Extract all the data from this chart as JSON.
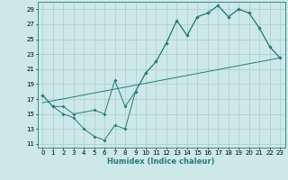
{
  "xlabel": "Humidex (Indice chaleur)",
  "background_color": "#cce8e8",
  "grid_color": "#aacccc",
  "line_color": "#2a7a7a",
  "xlim": [
    -0.5,
    23.5
  ],
  "ylim": [
    10.5,
    30.0
  ],
  "xticks": [
    0,
    1,
    2,
    3,
    4,
    5,
    6,
    7,
    8,
    9,
    10,
    11,
    12,
    13,
    14,
    15,
    16,
    17,
    18,
    19,
    20,
    21,
    22,
    23
  ],
  "yticks": [
    11,
    13,
    15,
    17,
    19,
    21,
    23,
    25,
    27,
    29
  ],
  "series1_x": [
    0,
    1,
    2,
    3,
    4,
    5,
    6,
    7,
    8,
    9,
    10,
    11,
    12,
    13,
    14,
    15,
    16,
    17,
    18,
    19,
    20,
    21,
    22,
    23
  ],
  "series1_y": [
    17.5,
    16,
    15,
    14.5,
    13,
    12,
    11.5,
    13.5,
    13,
    18,
    20.5,
    22,
    24.5,
    27.5,
    25.5,
    28,
    28.5,
    29.5,
    28,
    29,
    28.5,
    26.5,
    24,
    22.5
  ],
  "series2_x": [
    0,
    1,
    2,
    3,
    5,
    6,
    7,
    8,
    9,
    10,
    11,
    12,
    13,
    14,
    15,
    16,
    17,
    18,
    19,
    20,
    21,
    22,
    23
  ],
  "series2_y": [
    17.5,
    16,
    16,
    15,
    15.5,
    15,
    19.5,
    16,
    18,
    20.5,
    22,
    24.5,
    27.5,
    25.5,
    28,
    28.5,
    29.5,
    28,
    29,
    28.5,
    26.5,
    24,
    22.5
  ],
  "trend_x": [
    0,
    23
  ],
  "trend_y": [
    16.5,
    22.5
  ]
}
